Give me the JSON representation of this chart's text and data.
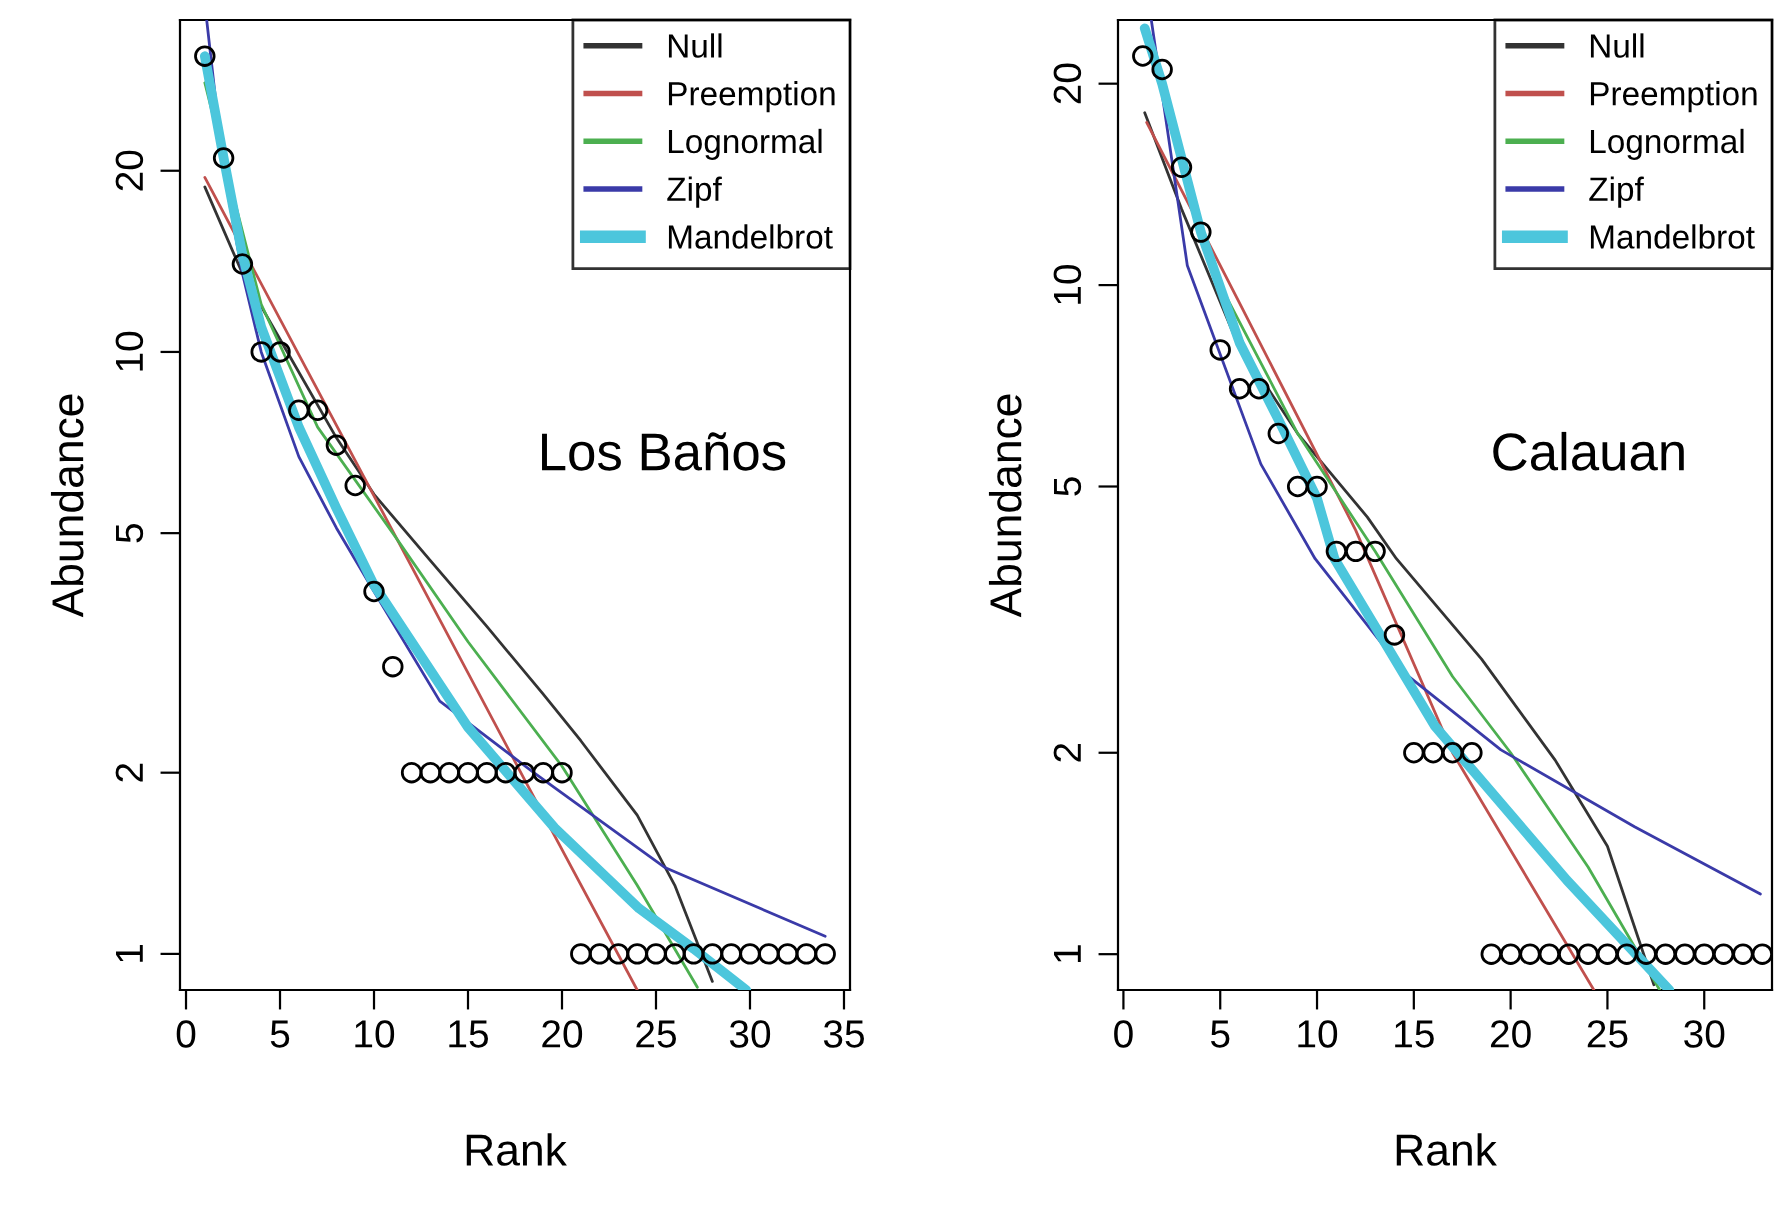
{
  "chart_data": [
    {
      "type": "line",
      "xlabel": "Rank",
      "ylabel": "Abundance",
      "log": "y",
      "grid": false,
      "legend": "top right",
      "annotations": [
        "Los Baños"
      ],
      "xlim": [
        -0.32,
        35.32
      ],
      "ylim": [
        0.871,
        35.6
      ],
      "xticks": [
        0,
        5,
        10,
        15,
        20,
        25,
        30,
        35
      ],
      "yticks": [
        1,
        2,
        5,
        10,
        20
      ],
      "series": [
        {
          "type": "scatter",
          "marker": "circle",
          "color": "#000000",
          "x": [
            1,
            2,
            3,
            4,
            5,
            6,
            7,
            8,
            9,
            10,
            11,
            12,
            13,
            14,
            15,
            16,
            17,
            18,
            19,
            20,
            21,
            22,
            23,
            24,
            25,
            26,
            27,
            28,
            29,
            30,
            31,
            32,
            33,
            34
          ],
          "values": [
            31,
            21,
            14,
            10,
            10,
            8,
            8,
            7,
            6,
            4,
            3,
            2,
            2,
            2,
            2,
            2,
            2,
            2,
            2,
            2,
            1,
            1,
            1,
            1,
            1,
            1,
            1,
            1,
            1,
            1,
            1,
            1,
            1,
            1
          ]
        },
        {
          "name": "Null",
          "color": "#333333",
          "x": [
            1,
            3,
            5,
            8,
            10,
            13,
            16,
            19,
            21,
            24,
            26,
            28
          ],
          "values": [
            18.8,
            13.5,
            10.5,
            7.2,
            5.8,
            4.5,
            3.5,
            2.7,
            2.26,
            1.7,
            1.3,
            0.9
          ]
        },
        {
          "name": "Preemption",
          "color": "#c0504d",
          "x": [
            1,
            6,
            12,
            18,
            24
          ],
          "values": [
            19.5,
            9.9,
            4.4,
            1.95,
            0.871
          ]
        },
        {
          "name": "Lognormal",
          "color": "#4caf50",
          "x": [
            1,
            2,
            4,
            7,
            11,
            15,
            20,
            24,
            27.2
          ],
          "values": [
            28,
            21,
            12,
            7.5,
            5,
            3.3,
            2.05,
            1.3,
            0.88
          ]
        },
        {
          "name": "Zipf",
          "color": "#3a3aa8",
          "x": [
            1.1,
            2,
            3,
            4,
            6,
            8,
            10,
            13.5,
            18.5,
            25.5,
            34
          ],
          "values": [
            35.6,
            20,
            13.5,
            10,
            6.7,
            5.1,
            4.0,
            2.63,
            2.0,
            1.39,
            1.07
          ]
        },
        {
          "name": "Mandelbrot",
          "color": "#4cc6dc",
          "x": [
            1,
            2,
            3,
            4,
            6,
            8,
            10,
            15,
            19.6,
            24.1,
            27,
            29.8
          ],
          "values": [
            31,
            21,
            14.5,
            11,
            7.5,
            5.5,
            4.1,
            2.38,
            1.62,
            1.19,
            1.02,
            0.871
          ]
        }
      ]
    },
    {
      "type": "line",
      "xlabel": "Rank",
      "ylabel": "Abundance",
      "log": "y",
      "grid": false,
      "legend": "top right",
      "annotations": [
        "Calauan"
      ],
      "xlim": [
        -0.28,
        33.5
      ],
      "ylim": [
        0.884,
        24.9
      ],
      "xticks": [
        0,
        5,
        10,
        15,
        20,
        25,
        30
      ],
      "yticks": [
        1,
        2,
        5,
        10,
        20
      ],
      "series": [
        {
          "type": "scatter",
          "marker": "circle",
          "color": "#000000",
          "x": [
            1,
            2,
            3,
            4,
            5,
            6,
            7,
            8,
            9,
            10,
            11,
            12,
            13,
            14,
            15,
            16,
            17,
            18,
            19,
            20,
            21,
            22,
            23,
            24,
            25,
            26,
            27,
            28,
            29,
            30,
            31,
            32,
            33
          ],
          "values": [
            22,
            21,
            15,
            12,
            8,
            7,
            7,
            6,
            5,
            5,
            4,
            4,
            4,
            3,
            2,
            2,
            2,
            2,
            1,
            1,
            1,
            1,
            1,
            1,
            1,
            1,
            1,
            1,
            1,
            1,
            1,
            1,
            1
          ]
        },
        {
          "name": "Null",
          "color": "#333333",
          "x": [
            1.1,
            3,
            5.8,
            9,
            12.6,
            14.1,
            18.5,
            22.3,
            25,
            27.4
          ],
          "values": [
            18.1,
            13,
            8.3,
            6,
            4.5,
            3.9,
            2.76,
            1.95,
            1.45,
            0.9
          ]
        },
        {
          "name": "Preemption",
          "color": "#c0504d",
          "x": [
            1.2,
            6,
            12,
            17,
            24.3
          ],
          "values": [
            17.5,
            9.4,
            4.3,
            2.0,
            0.884
          ]
        },
        {
          "name": "Lognormal",
          "color": "#4caf50",
          "x": [
            1.5,
            3,
            5,
            9,
            13,
            17,
            20,
            24,
            27.7
          ],
          "values": [
            22,
            15,
            10,
            6,
            4,
            2.6,
            2.0,
            1.35,
            0.884
          ]
        },
        {
          "name": "Zipf",
          "color": "#3a3aa8",
          "x": [
            1.44,
            3.3,
            7.1,
            9.9,
            14.6,
            19.5,
            26.4,
            32.9
          ],
          "values": [
            24.9,
            10.7,
            5.4,
            3.9,
            2.62,
            2.02,
            1.55,
            1.23
          ]
        },
        {
          "name": "Mandelbrot",
          "color": "#4cc6dc",
          "x": [
            1.1,
            2,
            4,
            6,
            8,
            10,
            10.9,
            16.1,
            22.9,
            28.2
          ],
          "values": [
            24.2,
            20,
            12,
            8.2,
            6.3,
            4.8,
            3.9,
            2.19,
            1.29,
            0.884
          ]
        }
      ]
    }
  ]
}
